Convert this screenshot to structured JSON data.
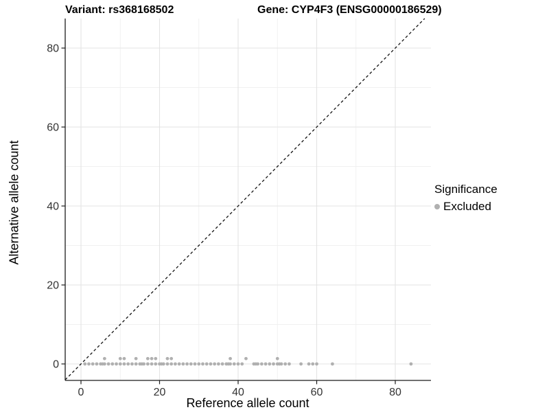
{
  "chart_data": {
    "type": "scatter",
    "title_left": "Variant: rs368168502",
    "title_right": "Gene: CYP4F3 (ENSG00000186529)",
    "xlabel": "Reference allele count",
    "ylabel": "Alternative allele count",
    "x_ticks": [
      0,
      20,
      40,
      60,
      80
    ],
    "y_ticks": [
      0,
      20,
      40,
      60,
      80
    ],
    "x_minor": [
      10,
      30,
      50,
      70
    ],
    "y_minor": [
      10,
      30,
      50,
      70
    ],
    "xlim": [
      -4,
      89
    ],
    "ylim": [
      -4,
      87.5
    ],
    "grid": {
      "major": true,
      "minor": true,
      "major_color": "#e3e3e3",
      "minor_color": "#f0f0f0"
    },
    "identity_line": {
      "style": "dashed",
      "slope": 1,
      "intercept": 0,
      "color": "#111111"
    },
    "legend": {
      "title": "Significance",
      "position": "right",
      "items": [
        {
          "label": "Excluded",
          "color": "#b0b0b0"
        }
      ]
    },
    "series": [
      {
        "name": "Excluded",
        "color": "#b0b0b0",
        "points_y0_x": [
          1,
          2,
          3,
          4,
          5,
          5.5,
          6,
          7,
          8,
          9,
          10,
          11,
          12,
          13,
          14,
          15,
          15.5,
          16,
          17,
          18,
          19,
          20,
          20.5,
          21,
          22,
          23,
          24,
          25,
          26,
          27,
          28,
          29,
          30,
          31,
          32,
          33,
          34,
          35,
          36,
          37,
          37.5,
          38,
          39,
          40,
          41,
          44,
          44.5,
          45,
          46,
          47,
          48,
          49,
          50,
          50.5,
          51,
          52,
          53,
          56,
          58,
          59,
          60,
          64,
          84
        ],
        "points_y1_x": [
          6,
          10,
          11,
          14,
          17,
          18,
          19,
          22,
          23,
          38,
          42,
          50
        ]
      }
    ],
    "axis_color": "#1a1a1a"
  }
}
